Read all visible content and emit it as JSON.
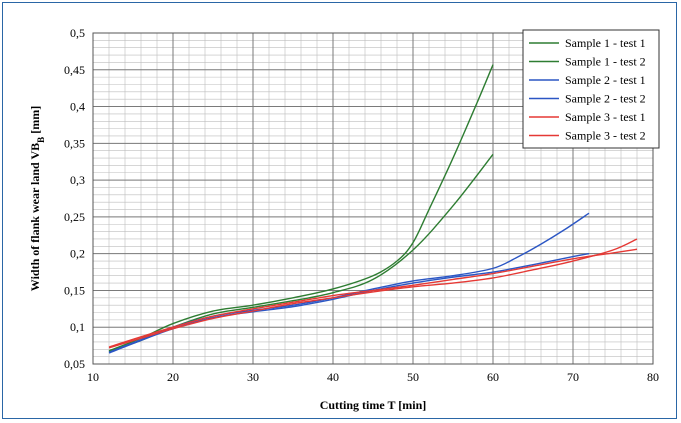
{
  "chart_data": {
    "type": "line",
    "title": "",
    "xlabel": "Cutting time T [min]",
    "ylabel_main": "Width of flank wear land VB",
    "ylabel_sub": "B",
    "ylabel_unit": " [mm]",
    "xlim": [
      10,
      80
    ],
    "ylim": [
      0.05,
      0.5
    ],
    "x_ticks": [
      10,
      20,
      30,
      40,
      50,
      60,
      70,
      80
    ],
    "y_ticks": [
      "0,05",
      "0,1",
      "0,15",
      "0,2",
      "0,25",
      "0,3",
      "0,35",
      "0,4",
      "0,45",
      "0,5"
    ],
    "grid": true,
    "legend_position": "top-right",
    "series": [
      {
        "name": "Sample 1 - test 1",
        "color": "#2e7d32",
        "x": [
          12,
          16,
          20,
          25,
          30,
          35,
          40,
          45,
          48,
          50,
          52,
          55,
          58,
          60
        ],
        "y": [
          0.068,
          0.085,
          0.105,
          0.122,
          0.13,
          0.14,
          0.152,
          0.17,
          0.19,
          0.215,
          0.26,
          0.33,
          0.405,
          0.457
        ]
      },
      {
        "name": "Sample 1 - test 2",
        "color": "#2e7d32",
        "x": [
          12,
          16,
          20,
          25,
          30,
          35,
          40,
          45,
          50,
          55,
          60
        ],
        "y": [
          0.067,
          0.082,
          0.1,
          0.118,
          0.127,
          0.136,
          0.147,
          0.165,
          0.205,
          0.265,
          0.335
        ]
      },
      {
        "name": "Sample 2 - test 1",
        "color": "#2b56c4",
        "x": [
          12,
          16,
          20,
          25,
          30,
          35,
          40,
          45,
          50,
          55,
          60,
          63,
          66,
          69,
          72
        ],
        "y": [
          0.066,
          0.083,
          0.1,
          0.115,
          0.123,
          0.13,
          0.14,
          0.152,
          0.163,
          0.17,
          0.18,
          0.195,
          0.213,
          0.233,
          0.255
        ]
      },
      {
        "name": "Sample 2 - test 2",
        "color": "#2b56c4",
        "x": [
          12,
          16,
          20,
          25,
          30,
          35,
          40,
          45,
          50,
          55,
          60,
          65,
          70,
          72
        ],
        "y": [
          0.065,
          0.082,
          0.098,
          0.113,
          0.121,
          0.128,
          0.138,
          0.15,
          0.16,
          0.168,
          0.175,
          0.185,
          0.196,
          0.2
        ]
      },
      {
        "name": "Sample 3 - test 1",
        "color": "#e53935",
        "x": [
          12,
          16,
          20,
          25,
          30,
          35,
          40,
          45,
          50,
          55,
          60,
          65,
          70,
          75,
          78
        ],
        "y": [
          0.072,
          0.085,
          0.098,
          0.112,
          0.122,
          0.132,
          0.14,
          0.148,
          0.155,
          0.16,
          0.167,
          0.178,
          0.19,
          0.205,
          0.22
        ]
      },
      {
        "name": "Sample 3 - test 2",
        "color": "#e53935",
        "x": [
          12,
          16,
          20,
          25,
          30,
          35,
          40,
          45,
          50,
          55,
          60,
          65,
          70,
          75,
          78
        ],
        "y": [
          0.073,
          0.087,
          0.1,
          0.115,
          0.125,
          0.134,
          0.143,
          0.15,
          0.157,
          0.165,
          0.173,
          0.183,
          0.193,
          0.201,
          0.206
        ]
      }
    ]
  }
}
